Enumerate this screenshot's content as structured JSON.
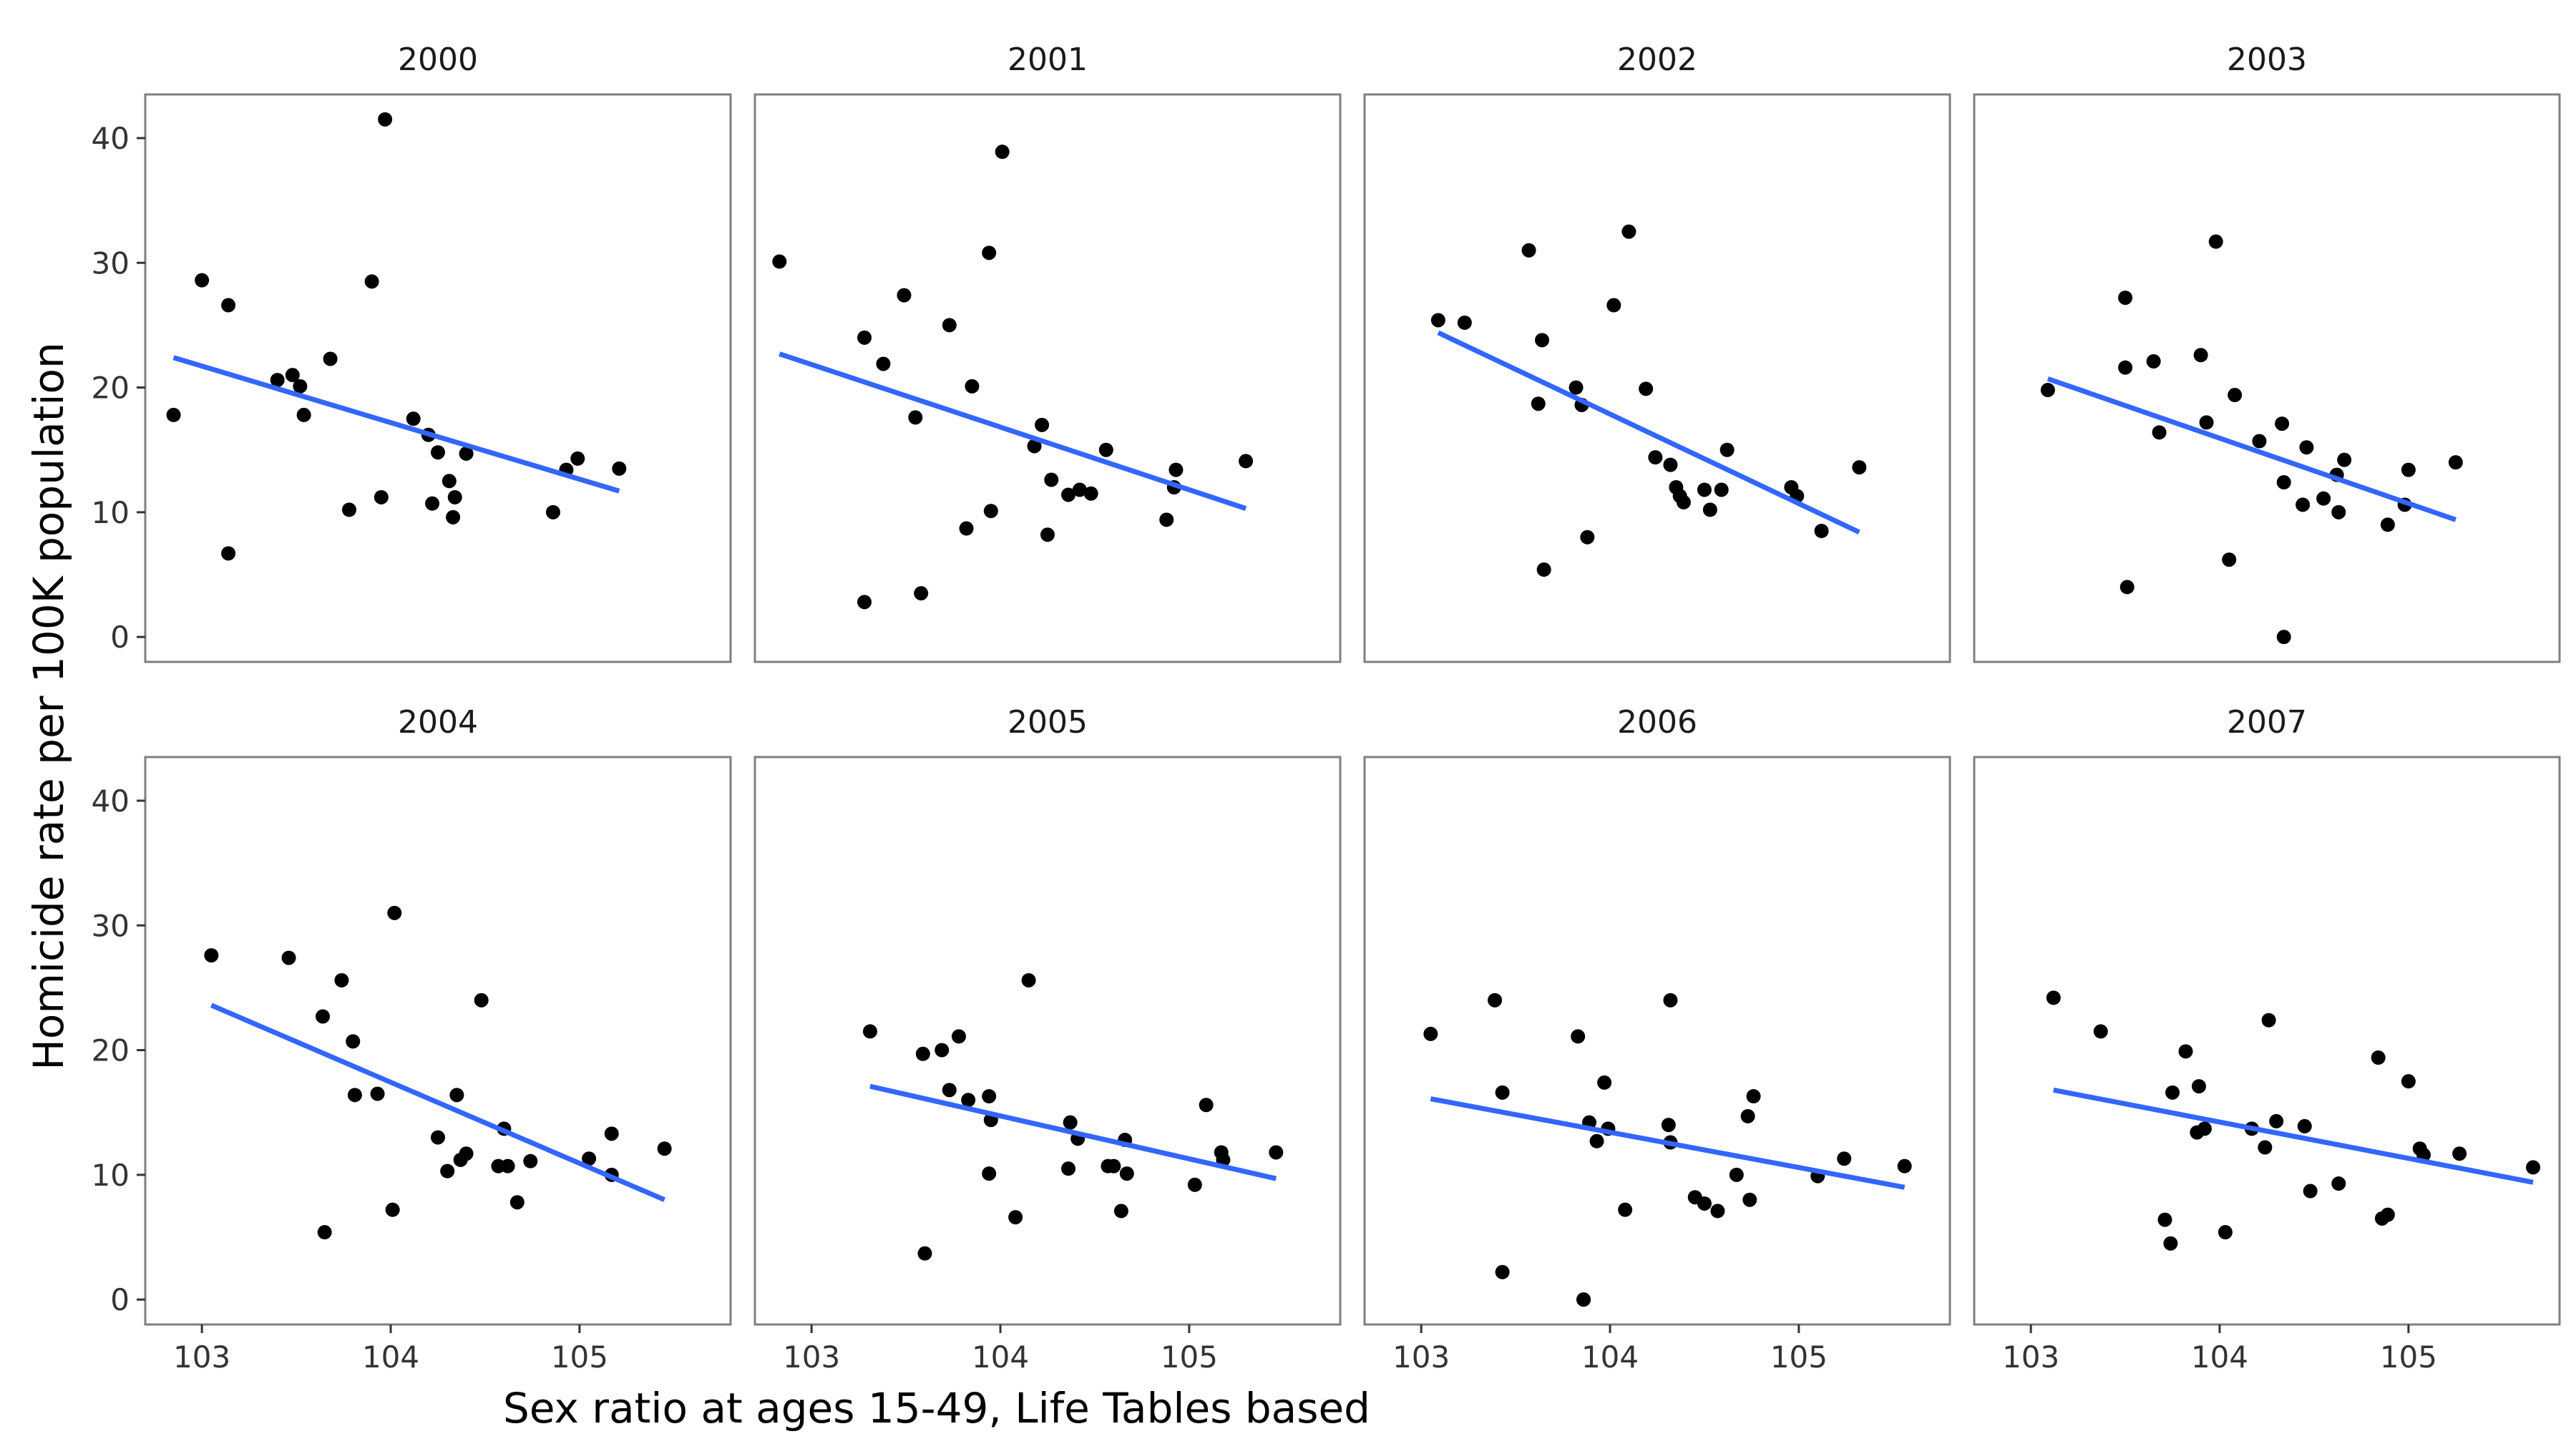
{
  "chart_data": {
    "type": "scatter",
    "xlabel": "Sex ratio at ages 15-49, Life Tables based",
    "ylabel": "Homicide rate per 100K population",
    "xlim": [
      102.7,
      105.8
    ],
    "ylim": [
      -2,
      43.5
    ],
    "x_ticks": [
      103,
      104,
      105
    ],
    "y_ticks": [
      0,
      10,
      20,
      30,
      40
    ],
    "grid": false,
    "facet_layout": {
      "rows": 2,
      "cols": 4
    },
    "point_color": "#000000",
    "trend_color": "#3366ff",
    "panels": [
      {
        "label": "2000",
        "points": [
          [
            102.85,
            17.8
          ],
          [
            103.0,
            28.6
          ],
          [
            103.14,
            26.6
          ],
          [
            103.14,
            6.7
          ],
          [
            103.4,
            20.6
          ],
          [
            103.48,
            21.0
          ],
          [
            103.52,
            20.1
          ],
          [
            103.54,
            17.8
          ],
          [
            103.68,
            22.3
          ],
          [
            103.78,
            10.2
          ],
          [
            103.9,
            28.5
          ],
          [
            103.95,
            11.2
          ],
          [
            103.97,
            41.5
          ],
          [
            104.12,
            17.5
          ],
          [
            104.2,
            16.2
          ],
          [
            104.22,
            10.7
          ],
          [
            104.25,
            14.8
          ],
          [
            104.31,
            12.5
          ],
          [
            104.33,
            9.6
          ],
          [
            104.34,
            11.2
          ],
          [
            104.4,
            14.7
          ],
          [
            104.86,
            10.0
          ],
          [
            104.93,
            13.4
          ],
          [
            104.99,
            14.3
          ],
          [
            105.21,
            13.5
          ]
        ],
        "trend": [
          [
            102.85,
            22.4
          ],
          [
            105.21,
            11.7
          ]
        ]
      },
      {
        "label": "2001",
        "points": [
          [
            102.83,
            30.1
          ],
          [
            103.28,
            24.0
          ],
          [
            103.38,
            21.9
          ],
          [
            103.49,
            27.4
          ],
          [
            103.58,
            3.5
          ],
          [
            103.73,
            25.0
          ],
          [
            103.82,
            8.7
          ],
          [
            103.85,
            20.1
          ],
          [
            103.94,
            30.8
          ],
          [
            103.95,
            10.1
          ],
          [
            104.01,
            38.9
          ],
          [
            104.18,
            15.3
          ],
          [
            104.22,
            17.0
          ],
          [
            104.25,
            8.2
          ],
          [
            104.27,
            12.6
          ],
          [
            104.36,
            11.4
          ],
          [
            104.42,
            11.8
          ],
          [
            104.48,
            11.5
          ],
          [
            104.56,
            15.0
          ],
          [
            104.88,
            9.4
          ],
          [
            104.92,
            12.0
          ],
          [
            104.93,
            13.4
          ],
          [
            105.3,
            14.1
          ],
          [
            103.28,
            2.8
          ],
          [
            103.55,
            17.6
          ]
        ],
        "trend": [
          [
            102.83,
            22.7
          ],
          [
            105.3,
            10.3
          ]
        ]
      },
      {
        "label": "2002",
        "points": [
          [
            103.09,
            25.4
          ],
          [
            103.23,
            25.2
          ],
          [
            103.57,
            31.0
          ],
          [
            103.62,
            18.7
          ],
          [
            103.64,
            23.8
          ],
          [
            103.65,
            5.4
          ],
          [
            103.82,
            20.0
          ],
          [
            103.85,
            18.6
          ],
          [
            103.88,
            8.0
          ],
          [
            104.02,
            26.6
          ],
          [
            104.1,
            32.5
          ],
          [
            104.19,
            19.9
          ],
          [
            104.24,
            14.4
          ],
          [
            104.32,
            13.8
          ],
          [
            104.35,
            12.0
          ],
          [
            104.37,
            11.3
          ],
          [
            104.39,
            10.8
          ],
          [
            104.5,
            11.8
          ],
          [
            104.53,
            10.2
          ],
          [
            104.59,
            11.8
          ],
          [
            104.62,
            15.0
          ],
          [
            104.96,
            12.0
          ],
          [
            104.99,
            11.3
          ],
          [
            105.12,
            8.5
          ],
          [
            105.32,
            13.6
          ]
        ],
        "trend": [
          [
            103.09,
            24.4
          ],
          [
            105.32,
            8.4
          ]
        ]
      },
      {
        "label": "2003",
        "points": [
          [
            103.09,
            19.8
          ],
          [
            103.5,
            27.2
          ],
          [
            103.5,
            21.6
          ],
          [
            103.51,
            4.0
          ],
          [
            103.65,
            22.1
          ],
          [
            103.68,
            16.4
          ],
          [
            103.9,
            22.6
          ],
          [
            103.93,
            17.2
          ],
          [
            103.98,
            31.7
          ],
          [
            104.05,
            6.2
          ],
          [
            104.08,
            19.4
          ],
          [
            104.21,
            15.7
          ],
          [
            104.33,
            17.1
          ],
          [
            104.34,
            12.4
          ],
          [
            104.44,
            10.6
          ],
          [
            104.46,
            15.2
          ],
          [
            104.55,
            11.1
          ],
          [
            104.62,
            13.0
          ],
          [
            104.63,
            10.0
          ],
          [
            104.66,
            14.2
          ],
          [
            104.89,
            9.0
          ],
          [
            104.98,
            10.6
          ],
          [
            105.0,
            13.4
          ],
          [
            105.25,
            14.0
          ],
          [
            104.34,
            0.0
          ]
        ],
        "trend": [
          [
            103.09,
            20.7
          ],
          [
            105.25,
            9.4
          ]
        ]
      },
      {
        "label": "2004",
        "points": [
          [
            103.05,
            27.6
          ],
          [
            103.46,
            27.4
          ],
          [
            103.64,
            22.7
          ],
          [
            103.65,
            5.4
          ],
          [
            103.74,
            25.6
          ],
          [
            103.8,
            20.7
          ],
          [
            103.81,
            16.4
          ],
          [
            103.93,
            16.5
          ],
          [
            104.01,
            7.2
          ],
          [
            104.02,
            31.0
          ],
          [
            104.25,
            13.0
          ],
          [
            104.3,
            10.3
          ],
          [
            104.35,
            16.4
          ],
          [
            104.37,
            11.2
          ],
          [
            104.4,
            11.7
          ],
          [
            104.48,
            24.0
          ],
          [
            104.57,
            10.7
          ],
          [
            104.6,
            13.7
          ],
          [
            104.62,
            10.7
          ],
          [
            104.67,
            7.8
          ],
          [
            104.74,
            11.1
          ],
          [
            105.05,
            11.3
          ],
          [
            105.17,
            13.3
          ],
          [
            105.17,
            10.0
          ],
          [
            105.45,
            12.1
          ]
        ],
        "trend": [
          [
            103.05,
            23.6
          ],
          [
            105.45,
            8.0
          ]
        ]
      },
      {
        "label": "2005",
        "points": [
          [
            103.31,
            21.5
          ],
          [
            103.59,
            19.7
          ],
          [
            103.6,
            3.7
          ],
          [
            103.69,
            20.0
          ],
          [
            103.73,
            16.8
          ],
          [
            103.78,
            21.1
          ],
          [
            103.83,
            16.0
          ],
          [
            103.94,
            10.1
          ],
          [
            103.94,
            16.3
          ],
          [
            103.95,
            14.4
          ],
          [
            104.08,
            6.6
          ],
          [
            104.15,
            25.6
          ],
          [
            104.36,
            10.5
          ],
          [
            104.37,
            14.2
          ],
          [
            104.41,
            12.9
          ],
          [
            104.57,
            10.7
          ],
          [
            104.6,
            10.7
          ],
          [
            104.64,
            7.1
          ],
          [
            104.66,
            12.8
          ],
          [
            104.67,
            10.1
          ],
          [
            105.03,
            9.2
          ],
          [
            105.09,
            15.6
          ],
          [
            105.17,
            11.8
          ],
          [
            105.18,
            11.2
          ],
          [
            105.46,
            11.8
          ]
        ],
        "trend": [
          [
            103.31,
            17.1
          ],
          [
            105.46,
            9.7
          ]
        ]
      },
      {
        "label": "2006",
        "points": [
          [
            103.05,
            21.3
          ],
          [
            103.39,
            24.0
          ],
          [
            103.43,
            2.2
          ],
          [
            103.43,
            16.6
          ],
          [
            103.83,
            21.1
          ],
          [
            103.86,
            0.0
          ],
          [
            103.89,
            14.2
          ],
          [
            103.93,
            12.7
          ],
          [
            103.97,
            17.4
          ],
          [
            103.99,
            13.7
          ],
          [
            104.08,
            7.2
          ],
          [
            104.31,
            14.0
          ],
          [
            104.32,
            24.0
          ],
          [
            104.32,
            12.6
          ],
          [
            104.45,
            8.2
          ],
          [
            104.5,
            7.7
          ],
          [
            104.57,
            7.1
          ],
          [
            104.67,
            10.0
          ],
          [
            104.73,
            14.7
          ],
          [
            104.76,
            16.3
          ],
          [
            104.74,
            8.0
          ],
          [
            105.1,
            9.9
          ],
          [
            105.24,
            11.3
          ],
          [
            105.56,
            10.7
          ],
          [
            103.86,
            0.0
          ]
        ],
        "trend": [
          [
            103.05,
            16.1
          ],
          [
            105.56,
            9.0
          ]
        ]
      },
      {
        "label": "2007",
        "points": [
          [
            103.12,
            24.2
          ],
          [
            103.37,
            21.5
          ],
          [
            103.71,
            6.4
          ],
          [
            103.74,
            4.5
          ],
          [
            103.75,
            16.6
          ],
          [
            103.82,
            19.9
          ],
          [
            103.88,
            13.4
          ],
          [
            103.89,
            17.1
          ],
          [
            103.92,
            13.7
          ],
          [
            104.03,
            5.4
          ],
          [
            104.17,
            13.7
          ],
          [
            104.24,
            12.2
          ],
          [
            104.26,
            22.4
          ],
          [
            104.3,
            14.3
          ],
          [
            104.45,
            13.9
          ],
          [
            104.48,
            8.7
          ],
          [
            104.63,
            9.3
          ],
          [
            104.84,
            19.4
          ],
          [
            104.86,
            6.5
          ],
          [
            104.89,
            6.8
          ],
          [
            105.0,
            17.5
          ],
          [
            105.06,
            12.1
          ],
          [
            105.08,
            11.6
          ],
          [
            105.27,
            11.7
          ],
          [
            105.66,
            10.6
          ]
        ],
        "trend": [
          [
            103.12,
            16.8
          ],
          [
            105.66,
            9.4
          ]
        ]
      }
    ]
  }
}
